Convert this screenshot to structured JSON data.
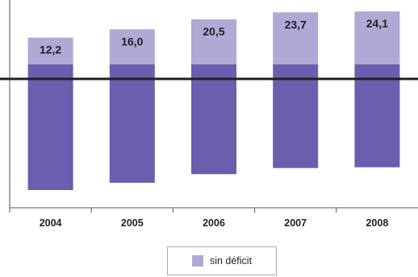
{
  "chart_data": {
    "type": "bar",
    "categories": [
      "2004",
      "2005",
      "2006",
      "2007",
      "2008"
    ],
    "series": [
      {
        "name": "sin déficit",
        "values": [
          12.2,
          16.0,
          20.5,
          23.7,
          24.1
        ],
        "labels": [
          "12,2",
          "16,0",
          "20,5",
          "23,7",
          "24,1"
        ]
      }
    ],
    "title": "",
    "xlabel": "",
    "ylabel": "",
    "legend": {
      "position": "bottom-center",
      "label": "sin déficit"
    },
    "grid": false,
    "colors": {
      "bar_top": "#b1a8d6",
      "bar_body": "#6a5fae",
      "baseline": "#231f20",
      "axis": "#555555"
    }
  }
}
